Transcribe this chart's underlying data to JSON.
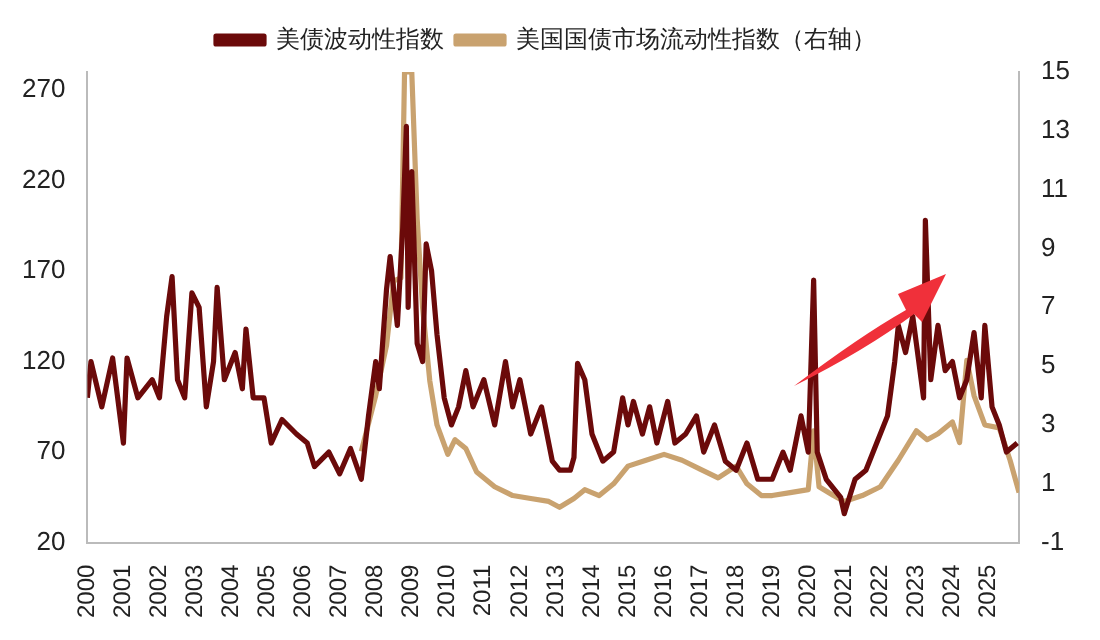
{
  "chart_data": {
    "type": "line",
    "xlim": [
      2000,
      2025.85
    ],
    "xticks": [
      2000,
      2001,
      2002,
      2003,
      2004,
      2005,
      2006,
      2007,
      2008,
      2009,
      2010,
      2011,
      2012,
      2013,
      2014,
      2015,
      2016,
      2017,
      2018,
      2019,
      2020,
      2021,
      2022,
      2023,
      2024,
      2025
    ],
    "ylim": [
      20,
      280
    ],
    "yticks": [
      20,
      70,
      120,
      170,
      220,
      270
    ],
    "y2lim": [
      -1,
      15
    ],
    "y2ticks": [
      -1,
      1,
      3,
      5,
      7,
      9,
      11,
      13,
      15
    ],
    "grid": false,
    "legend": "top",
    "marker": "none",
    "line_style": "solid",
    "series": [
      {
        "name": "美债波动性指数",
        "color": "#6b0a0a",
        "x": [
          2000.0,
          2000.1,
          2000.4,
          2000.7,
          2001.0,
          2001.1,
          2001.4,
          2001.8,
          2002.0,
          2002.2,
          2002.35,
          2002.5,
          2002.7,
          2002.9,
          2003.1,
          2003.3,
          2003.5,
          2003.6,
          2003.8,
          2004.1,
          2004.3,
          2004.4,
          2004.6,
          2004.9,
          2005.1,
          2005.4,
          2005.8,
          2006.1,
          2006.3,
          2006.7,
          2007.0,
          2007.3,
          2007.6,
          2007.8,
          2008.0,
          2008.1,
          2008.3,
          2008.4,
          2008.6,
          2008.75,
          2008.85,
          2008.9,
          2009.0,
          2009.15,
          2009.3,
          2009.4,
          2009.55,
          2009.7,
          2009.9,
          2010.1,
          2010.3,
          2010.5,
          2010.7,
          2011.0,
          2011.3,
          2011.6,
          2011.8,
          2012.0,
          2012.3,
          2012.6,
          2012.9,
          2013.1,
          2013.4,
          2013.5,
          2013.6,
          2013.8,
          2014.0,
          2014.3,
          2014.6,
          2014.85,
          2015.0,
          2015.15,
          2015.4,
          2015.6,
          2015.8,
          2016.1,
          2016.3,
          2016.6,
          2016.9,
          2017.1,
          2017.4,
          2017.7,
          2018.0,
          2018.3,
          2018.6,
          2019.0,
          2019.3,
          2019.5,
          2019.8,
          2020.0,
          2020.15,
          2020.25,
          2020.5,
          2020.9,
          2021.0,
          2021.3,
          2021.6,
          2021.9,
          2022.2,
          2022.4,
          2022.5,
          2022.7,
          2022.9,
          2023.0,
          2023.2,
          2023.25,
          2023.4,
          2023.6,
          2023.8,
          2024.0,
          2024.2,
          2024.4,
          2024.6,
          2024.8,
          2024.9,
          2025.1,
          2025.3,
          2025.5,
          2025.8
        ],
        "values": [
          100,
          120,
          95,
          122,
          75,
          122,
          100,
          110,
          100,
          145,
          167,
          110,
          100,
          158,
          150,
          95,
          120,
          161,
          110,
          125,
          105,
          138,
          100,
          100,
          75,
          88,
          80,
          75,
          62,
          70,
          58,
          72,
          55,
          90,
          120,
          105,
          160,
          178,
          140,
          194,
          250,
          150,
          225,
          130,
          120,
          185,
          170,
          135,
          100,
          85,
          95,
          115,
          95,
          110,
          85,
          120,
          95,
          110,
          80,
          95,
          65,
          60,
          60,
          67,
          119,
          110,
          80,
          65,
          70,
          100,
          85,
          98,
          80,
          95,
          75,
          98,
          75,
          80,
          90,
          70,
          85,
          65,
          60,
          75,
          55,
          55,
          70,
          60,
          90,
          70,
          165,
          70,
          55,
          45,
          36,
          55,
          60,
          75,
          90,
          120,
          140,
          125,
          145,
          130,
          100,
          198,
          110,
          140,
          115,
          120,
          100,
          110,
          136,
          100,
          140,
          95,
          85,
          70,
          75
        ]
      },
      {
        "name": "美国国债市场流动性指数（右轴）",
        "color": "#c9a26f",
        "axis": "y2",
        "x": [
          2007.6,
          2008.0,
          2008.3,
          2008.5,
          2008.7,
          2008.8,
          2009.0,
          2009.15,
          2009.3,
          2009.5,
          2009.7,
          2010.0,
          2010.2,
          2010.5,
          2010.8,
          2011.3,
          2011.8,
          2012.3,
          2012.8,
          2013.1,
          2013.5,
          2013.8,
          2014.2,
          2014.6,
          2015.0,
          2015.5,
          2016.0,
          2016.5,
          2017.0,
          2017.5,
          2018.0,
          2018.3,
          2018.7,
          2019.0,
          2019.5,
          2020.0,
          2020.15,
          2020.3,
          2020.7,
          2021.0,
          2021.5,
          2022.0,
          2022.5,
          2023.0,
          2023.3,
          2023.6,
          2024.0,
          2024.2,
          2024.4,
          2024.6,
          2024.9,
          2025.3,
          2025.6,
          2025.85
        ],
        "values": [
          2.1,
          4.0,
          5.7,
          7.9,
          8.0,
          15,
          15,
          10,
          7,
          4.5,
          3.0,
          2.0,
          2.5,
          2.2,
          1.4,
          0.9,
          0.6,
          0.5,
          0.4,
          0.2,
          0.5,
          0.8,
          0.6,
          1.0,
          1.6,
          1.8,
          2.0,
          1.8,
          1.5,
          1.2,
          1.6,
          1.0,
          0.6,
          0.6,
          0.7,
          0.8,
          2.8,
          0.9,
          0.6,
          0.4,
          0.6,
          0.9,
          1.8,
          2.8,
          2.5,
          2.7,
          3.1,
          2.4,
          5.2,
          4.0,
          3.0,
          2.9,
          1.8,
          0.7
        ]
      }
    ]
  }
}
